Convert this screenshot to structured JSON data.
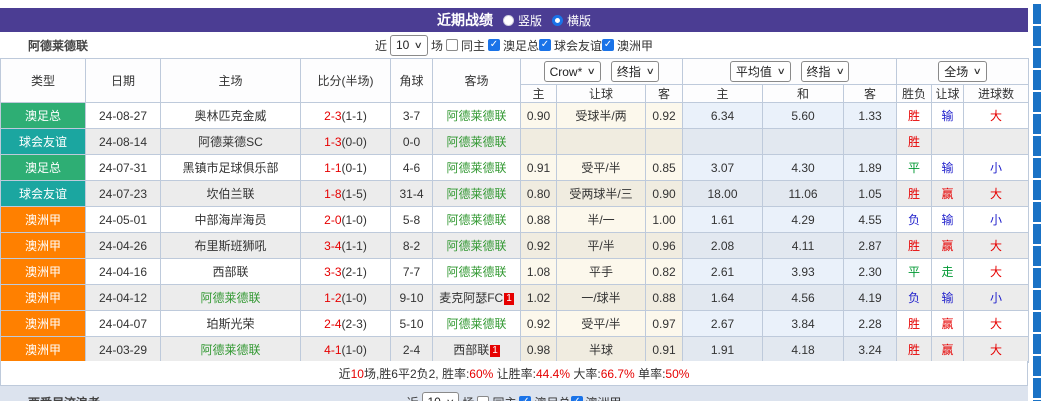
{
  "colors": {
    "purple": "#4b3d93",
    "league-green": "#2eae74",
    "league-teal": "#1ba6a0",
    "league-orange": "#ff8000",
    "team-green": "#339933",
    "red": "#e60000",
    "blue": "#2222cc",
    "green": "#009933",
    "checkbox-blue": "#1a73e8",
    "panel-blue": "#1a72c5"
  },
  "title_bar": {
    "title": "近期战绩",
    "radio_vertical": "竖版",
    "radio_horizontal": "横版",
    "selected": "横版"
  },
  "filter": {
    "team": "阿德莱德联",
    "near": "近",
    "count": "10",
    "unit": "场",
    "same_home": "同主",
    "same_home_checked": false,
    "leagues": [
      "澳足总",
      "球会友谊",
      "澳洲甲"
    ]
  },
  "table": {
    "dropdowns": {
      "asian_company": "Crow*",
      "asian_time": "终指",
      "euro_company": "平均值",
      "euro_time": "终指",
      "scope": "全场"
    },
    "headers": {
      "type": "类型",
      "date": "日期",
      "home": "主场",
      "score": "比分(半场)",
      "corner": "角球",
      "away": "客场",
      "odds_home": "主",
      "odds_handicap": "让球",
      "odds_away": "客",
      "euro_home": "主",
      "euro_draw": "和",
      "euro_away": "客",
      "result_wdl": "胜负",
      "result_handicap": "让球",
      "result_goals": "进球数"
    },
    "rows": [
      {
        "type": "澳足总",
        "type_key": "cup",
        "date": "24-08-27",
        "home": "奥林匹克金威",
        "home_self": false,
        "score": "2-3",
        "half": "(1-1)",
        "corner": "3-7",
        "away": "阿德莱德联",
        "away_self": true,
        "away_badge": "",
        "o_home": "0.90",
        "handicap": "受球半/两",
        "o_away": "0.92",
        "e_home": "6.34",
        "e_draw": "5.60",
        "e_away": "1.33",
        "res_wdl": "胜",
        "res_wdl_c": "red",
        "res_handicap": "输",
        "res_handicap_c": "blue",
        "res_goals": "大",
        "res_goals_c": "red"
      },
      {
        "type": "球会友谊",
        "type_key": "friendly",
        "date": "24-08-14",
        "home": "阿德莱德SC",
        "home_self": false,
        "score": "1-3",
        "half": "(0-0)",
        "corner": "0-0",
        "away": "阿德莱德联",
        "away_self": true,
        "away_badge": "",
        "o_home": "",
        "handicap": "",
        "o_away": "",
        "e_home": "",
        "e_draw": "",
        "e_away": "",
        "res_wdl": "胜",
        "res_wdl_c": "red",
        "res_handicap": "",
        "res_handicap_c": "red",
        "res_goals": "",
        "res_goals_c": "red"
      },
      {
        "type": "澳足总",
        "type_key": "cup",
        "date": "24-07-31",
        "home": "黑镇市足球俱乐部",
        "home_self": false,
        "score": "1-1",
        "half": "(0-1)",
        "corner": "4-6",
        "away": "阿德莱德联",
        "away_self": true,
        "away_badge": "",
        "o_home": "0.91",
        "handicap": "受平/半",
        "o_away": "0.85",
        "e_home": "3.07",
        "e_draw": "4.30",
        "e_away": "1.89",
        "res_wdl": "平",
        "res_wdl_c": "green",
        "res_handicap": "输",
        "res_handicap_c": "blue",
        "res_goals": "小",
        "res_goals_c": "blue"
      },
      {
        "type": "球会友谊",
        "type_key": "friendly",
        "date": "24-07-23",
        "home": "坎伯兰联",
        "home_self": false,
        "score": "1-8",
        "half": "(1-5)",
        "corner": "31-4",
        "away": "阿德莱德联",
        "away_self": true,
        "away_badge": "",
        "o_home": "0.80",
        "handicap": "受两球半/三",
        "o_away": "0.90",
        "e_home": "18.00",
        "e_draw": "11.06",
        "e_away": "1.05",
        "res_wdl": "胜",
        "res_wdl_c": "red",
        "res_handicap": "赢",
        "res_handicap_c": "red",
        "res_goals": "大",
        "res_goals_c": "red"
      },
      {
        "type": "澳洲甲",
        "type_key": "league",
        "date": "24-05-01",
        "home": "中部海岸海员",
        "home_self": false,
        "score": "2-0",
        "half": "(1-0)",
        "corner": "5-8",
        "away": "阿德莱德联",
        "away_self": true,
        "away_badge": "",
        "o_home": "0.88",
        "handicap": "半/一",
        "o_away": "1.00",
        "e_home": "1.61",
        "e_draw": "4.29",
        "e_away": "4.55",
        "res_wdl": "负",
        "res_wdl_c": "blue",
        "res_handicap": "输",
        "res_handicap_c": "blue",
        "res_goals": "小",
        "res_goals_c": "blue"
      },
      {
        "type": "澳洲甲",
        "type_key": "league",
        "date": "24-04-26",
        "home": "布里斯班狮吼",
        "home_self": false,
        "score": "3-4",
        "half": "(1-1)",
        "corner": "8-2",
        "away": "阿德莱德联",
        "away_self": true,
        "away_badge": "",
        "o_home": "0.92",
        "handicap": "平/半",
        "o_away": "0.96",
        "e_home": "2.08",
        "e_draw": "4.11",
        "e_away": "2.87",
        "res_wdl": "胜",
        "res_wdl_c": "red",
        "res_handicap": "赢",
        "res_handicap_c": "red",
        "res_goals": "大",
        "res_goals_c": "red"
      },
      {
        "type": "澳洲甲",
        "type_key": "league",
        "date": "24-04-16",
        "home": "西部联",
        "home_self": false,
        "score": "3-3",
        "half": "(2-1)",
        "corner": "7-7",
        "away": "阿德莱德联",
        "away_self": true,
        "away_badge": "",
        "o_home": "1.08",
        "handicap": "平手",
        "o_away": "0.82",
        "e_home": "2.61",
        "e_draw": "3.93",
        "e_away": "2.30",
        "res_wdl": "平",
        "res_wdl_c": "green",
        "res_handicap": "走",
        "res_handicap_c": "green",
        "res_goals": "大",
        "res_goals_c": "red"
      },
      {
        "type": "澳洲甲",
        "type_key": "league",
        "date": "24-04-12",
        "home": "阿德莱德联",
        "home_self": true,
        "score": "1-2",
        "half": "(1-0)",
        "corner": "9-10",
        "away": "麦克阿瑟FC",
        "away_self": false,
        "away_badge": "1",
        "o_home": "1.02",
        "handicap": "一/球半",
        "o_away": "0.88",
        "e_home": "1.64",
        "e_draw": "4.56",
        "e_away": "4.19",
        "res_wdl": "负",
        "res_wdl_c": "blue",
        "res_handicap": "输",
        "res_handicap_c": "blue",
        "res_goals": "小",
        "res_goals_c": "blue"
      },
      {
        "type": "澳洲甲",
        "type_key": "league",
        "date": "24-04-07",
        "home": "珀斯光荣",
        "home_self": false,
        "score": "2-4",
        "half": "(2-3)",
        "corner": "5-10",
        "away": "阿德莱德联",
        "away_self": true,
        "away_badge": "",
        "o_home": "0.92",
        "handicap": "受平/半",
        "o_away": "0.97",
        "e_home": "2.67",
        "e_draw": "3.84",
        "e_away": "2.28",
        "res_wdl": "胜",
        "res_wdl_c": "red",
        "res_handicap": "赢",
        "res_handicap_c": "red",
        "res_goals": "大",
        "res_goals_c": "red"
      },
      {
        "type": "澳洲甲",
        "type_key": "league",
        "date": "24-03-29",
        "home": "阿德莱德联",
        "home_self": true,
        "score": "4-1",
        "half": "(1-0)",
        "corner": "2-4",
        "away": "西部联",
        "away_self": false,
        "away_badge": "1",
        "o_home": "0.98",
        "handicap": "半球",
        "o_away": "0.91",
        "e_home": "1.91",
        "e_draw": "4.18",
        "e_away": "3.24",
        "res_wdl": "胜",
        "res_wdl_c": "red",
        "res_handicap": "赢",
        "res_handicap_c": "red",
        "res_goals": "大",
        "res_goals_c": "red"
      }
    ]
  },
  "summary": {
    "segments": [
      {
        "t": "近",
        "r": false
      },
      {
        "t": "10",
        "r": true
      },
      {
        "t": "场,胜6平2负2, 胜率:",
        "r": false
      },
      {
        "t": "60%",
        "r": true
      },
      {
        "t": " 让胜率:",
        "r": false
      },
      {
        "t": "44.4%",
        "r": true
      },
      {
        "t": " 大率:",
        "r": false
      },
      {
        "t": "66.7%",
        "r": true
      },
      {
        "t": " 单率:",
        "r": false
      },
      {
        "t": "50%",
        "r": true
      }
    ]
  },
  "bottom": {
    "team": "西悉尼流浪者",
    "near": "近",
    "count": "10",
    "unit": "场",
    "same_home": "同主",
    "same_home_checked": false,
    "leagues": [
      "澳足总",
      "澳洲甲"
    ]
  }
}
